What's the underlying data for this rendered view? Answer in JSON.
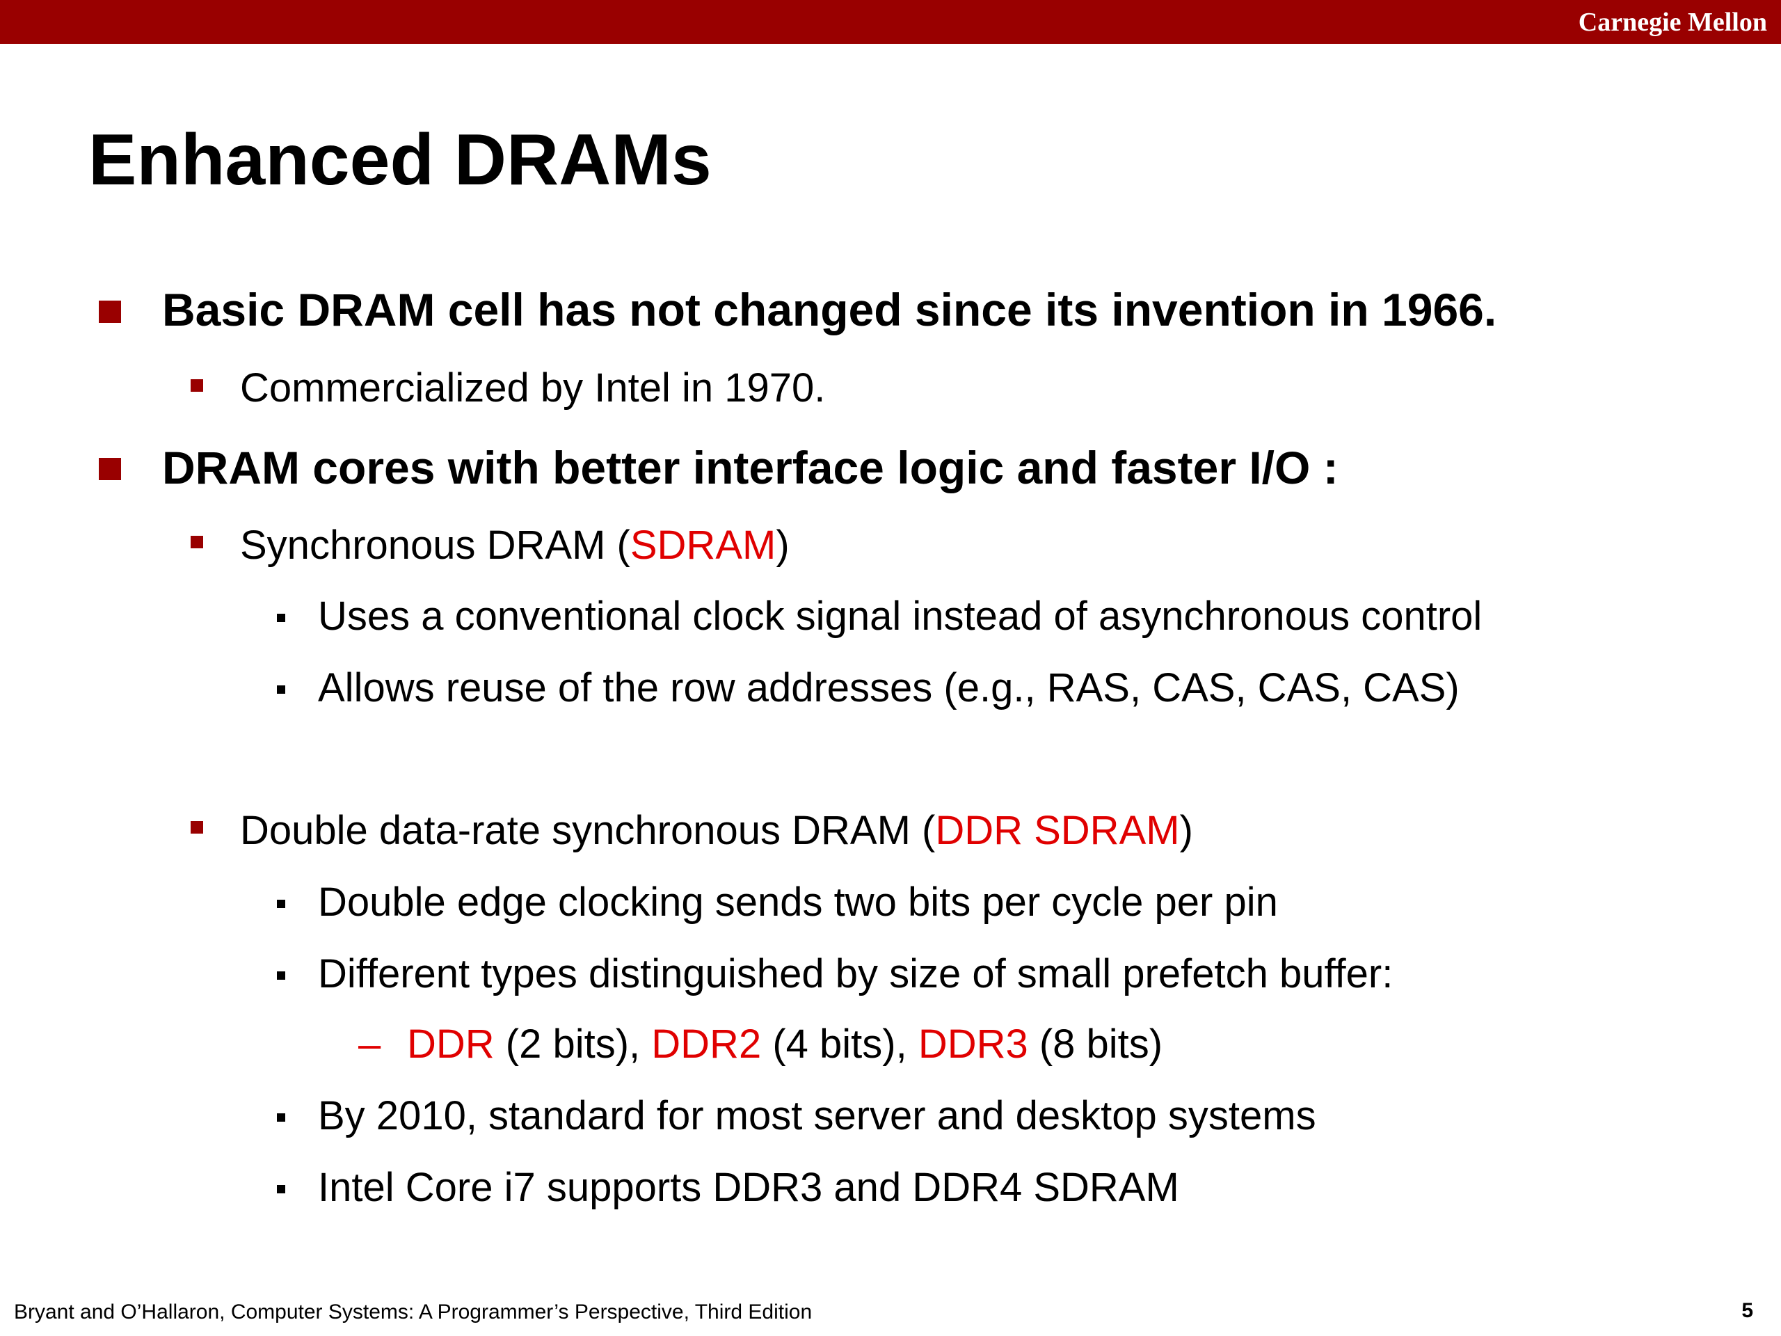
{
  "header": {
    "org": "Carnegie Mellon"
  },
  "slide": {
    "title": "Enhanced DRAMs",
    "b1": "Basic DRAM cell has not changed since its invention in 1966.",
    "b1_sub1": "Commercialized by Intel in 1970.",
    "b2": "DRAM cores with better interface logic and faster I/O :",
    "sdram": {
      "pre": "Synchronous DRAM (",
      "hl": "SDRAM",
      "post": ")"
    },
    "sdram_items": [
      "Uses a conventional clock signal instead of asynchronous control",
      "Allows reuse of the row addresses (e.g., RAS, CAS, CAS, CAS)"
    ],
    "ddr": {
      "pre": "Double data-rate synchronous DRAM (",
      "hl": "DDR SDRAM",
      "post": ")"
    },
    "ddr_items": [
      "Double edge clocking sends two bits per cycle per pin",
      "Different types distinguished by size of small prefetch buffer:"
    ],
    "ddr_types": {
      "dash": "–",
      "t1": "DDR",
      "t1_note": " (2 bits), ",
      "t2": "DDR2",
      "t2_note": " (4 bits), ",
      "t3": "DDR3",
      "t3_note": " (8 bits)"
    },
    "ddr_items_more": [
      "By 2010, standard for most server and desktop systems",
      "Intel Core i7 supports DDR3 and DDR4 SDRAM"
    ]
  },
  "footer": {
    "citation": "Bryant and O’Hallaron, Computer Systems: A Programmer’s Perspective, Third Edition",
    "page": "5"
  },
  "colors": {
    "brand": "#990000",
    "highlight": "#e00000"
  }
}
